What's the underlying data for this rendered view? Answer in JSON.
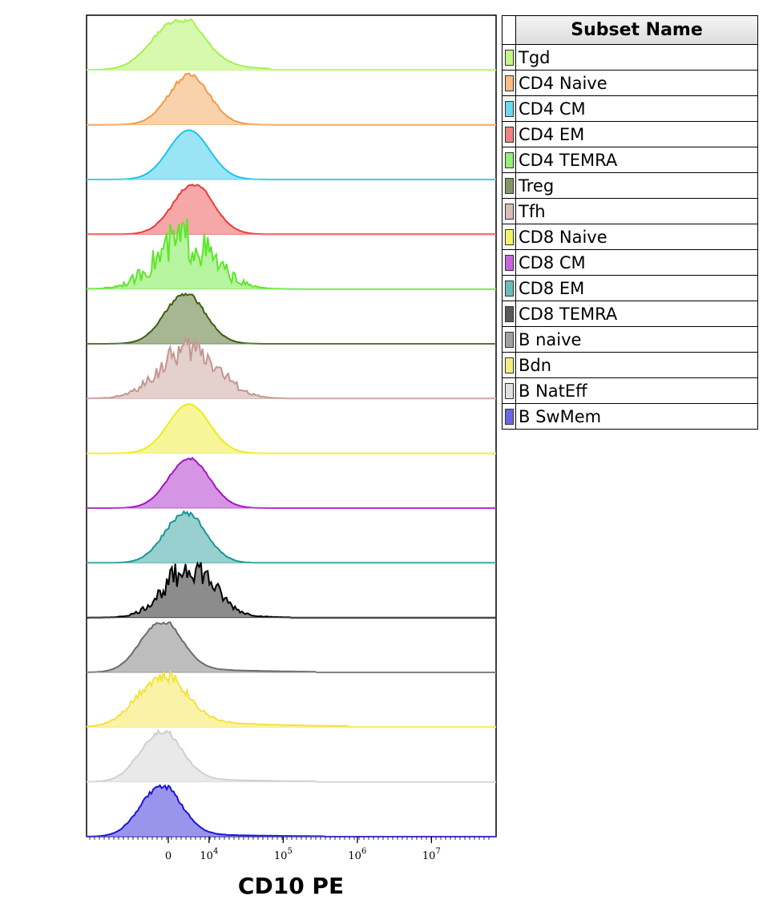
{
  "chart_data": {
    "type": "area",
    "subtype": "stacked-histogram-ridgeline",
    "xlabel": "CD10 PE",
    "x_scale": "biexponential",
    "x_ticks": [
      {
        "value": 0,
        "base": "0",
        "exp": ""
      },
      {
        "value": 10000,
        "base": "10",
        "exp": "4"
      },
      {
        "value": 100000,
        "base": "10",
        "exp": "5"
      },
      {
        "value": 1000000,
        "base": "10",
        "exp": "6"
      },
      {
        "value": 10000000,
        "base": "10",
        "exp": "7"
      }
    ],
    "legend_title": "Subset Name",
    "legend_position": "right",
    "series": [
      {
        "name": "Tgd",
        "color": "#a6f24a",
        "peak": 0.22,
        "width": 0.06,
        "tail": 0.25,
        "tail_end": 0.45,
        "noise": 0.08
      },
      {
        "name": "CD4 Naive",
        "color": "#f29a44",
        "peak": 0.25,
        "width": 0.05,
        "tail": 0.1,
        "tail_end": 0.3,
        "noise": 0.1
      },
      {
        "name": "CD4 CM",
        "color": "#1cc4e8",
        "peak": 0.25,
        "width": 0.05,
        "tail": 0.0,
        "tail_end": 0.0,
        "noise": 0.0
      },
      {
        "name": "CD4 EM",
        "color": "#ea3c3c",
        "peak": 0.26,
        "width": 0.05,
        "tail": 0.05,
        "tail_end": 0.34,
        "noise": 0.08
      },
      {
        "name": "CD4 TEMRA",
        "color": "#5ce62a",
        "peak": 0.24,
        "width": 0.07,
        "tail": 0.0,
        "tail_end": 0.0,
        "noise": 1.0
      },
      {
        "name": "Treg",
        "color": "#3c5e12",
        "peak": 0.24,
        "width": 0.05,
        "tail": 0.05,
        "tail_end": 0.32,
        "noise": 0.08
      },
      {
        "name": "Tfh",
        "color": "#c4968e",
        "peak": 0.25,
        "width": 0.07,
        "tail": 0.1,
        "tail_end": 0.38,
        "noise": 0.6
      },
      {
        "name": "CD8 Naive",
        "color": "#ecec1c",
        "peak": 0.25,
        "width": 0.05,
        "tail": 0.0,
        "tail_end": 0.0,
        "noise": 0.0
      },
      {
        "name": "CD8 CM",
        "color": "#a414c4",
        "peak": 0.25,
        "width": 0.05,
        "tail": 0.03,
        "tail_end": 0.3,
        "noise": 0.05
      },
      {
        "name": "CD8 EM",
        "color": "#1a9696",
        "peak": 0.24,
        "width": 0.05,
        "tail": 0.06,
        "tail_end": 0.36,
        "noise": 0.1
      },
      {
        "name": "CD8 TEMRA",
        "color": "#000000",
        "peak": 0.25,
        "width": 0.06,
        "tail": 0.06,
        "tail_end": 0.5,
        "noise": 0.6
      },
      {
        "name": "B naive",
        "color": "#6c6c6c",
        "peak": 0.18,
        "width": 0.05,
        "tail": 0.12,
        "tail_end": 0.56,
        "noise": 0.05
      },
      {
        "name": "Bdn",
        "color": "#f4e23c",
        "peak": 0.18,
        "width": 0.06,
        "tail": 0.18,
        "tail_end": 0.64,
        "noise": 0.25
      },
      {
        "name": "B NatEff",
        "color": "#cfcfcf",
        "peak": 0.18,
        "width": 0.05,
        "tail": 0.1,
        "tail_end": 0.56,
        "noise": 0.1
      },
      {
        "name": "B SwMem",
        "color": "#1c14d8",
        "peak": 0.18,
        "width": 0.05,
        "tail": 0.08,
        "tail_end": 0.58,
        "noise": 0.1
      }
    ]
  }
}
